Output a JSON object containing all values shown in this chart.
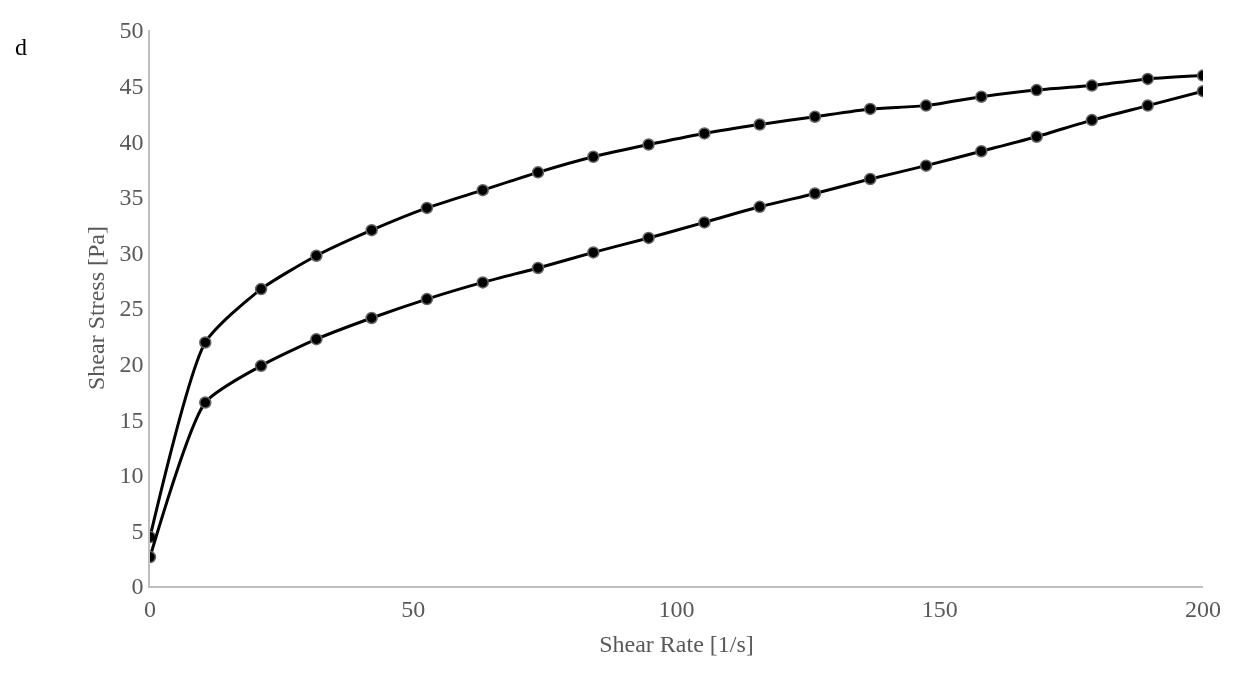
{
  "chart_data": {
    "type": "line",
    "xlabel": "Shear Rate [1/s]",
    "ylabel": "Shear Stress [Pa]",
    "annotations": [
      "d"
    ],
    "x": [
      0,
      10.5,
      21.1,
      31.6,
      42.1,
      52.6,
      63.2,
      73.7,
      84.2,
      94.7,
      105.3,
      115.8,
      126.3,
      136.8,
      147.4,
      157.9,
      168.4,
      178.9,
      189.5,
      200
    ],
    "series": [
      {
        "color": "#000000",
        "values": [
          4.4,
          21.9,
          26.7,
          29.7,
          32.0,
          34.0,
          35.6,
          37.2,
          38.6,
          39.7,
          40.7,
          41.5,
          42.2,
          42.9,
          43.2,
          44.0,
          44.6,
          45.0,
          45.6,
          45.9
        ]
      },
      {
        "color": "#000000",
        "values": [
          2.6,
          16.5,
          19.8,
          22.2,
          24.1,
          25.8,
          27.3,
          28.6,
          30.0,
          31.3,
          32.7,
          34.1,
          35.3,
          36.6,
          37.8,
          39.1,
          40.4,
          41.9,
          43.2,
          44.5
        ]
      }
    ],
    "xlim": [
      0,
      200
    ],
    "xticks": [
      0,
      50,
      100,
      150,
      200
    ],
    "ylim": [
      0,
      50
    ],
    "yticks": [
      0,
      5,
      10,
      15,
      20,
      25,
      30,
      35,
      40,
      45,
      50
    ],
    "marker": "circle",
    "line_style": "solid"
  }
}
